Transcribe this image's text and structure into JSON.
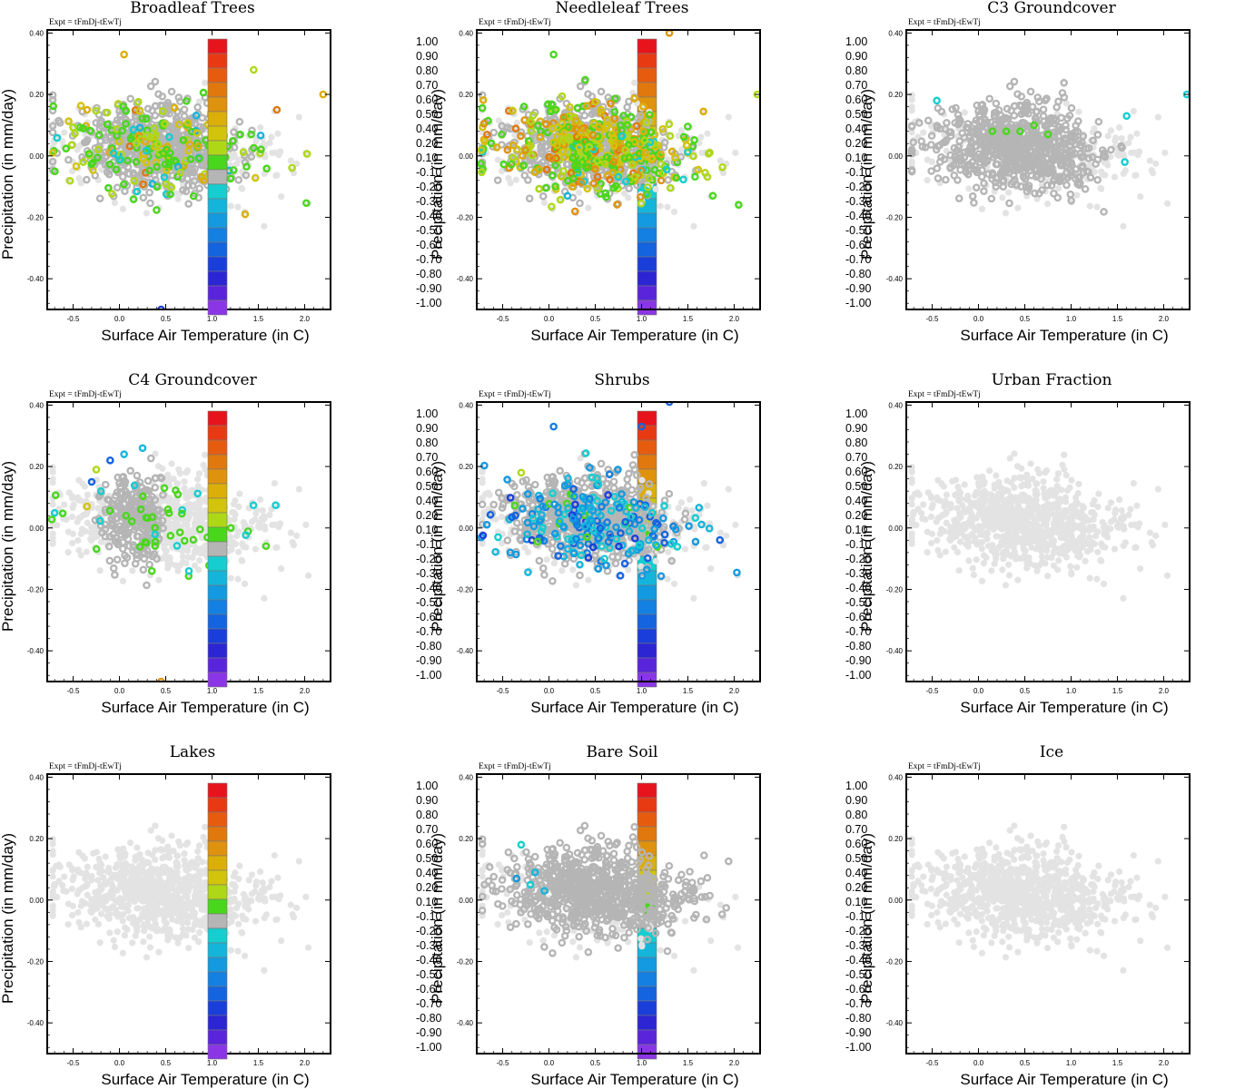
{
  "figure": {
    "colorbar": {
      "labels": [
        "1.00",
        "0.90",
        "0.80",
        "0.70",
        "0.60",
        "0.50",
        "0.40",
        "0.20",
        "0.10",
        "-0.10",
        "-0.20",
        "-0.30",
        "-0.40",
        "-0.50",
        "-0.60",
        "-0.70",
        "-0.80",
        "-0.90",
        "-1.00"
      ],
      "colors": [
        "#e8141c",
        "#e83a12",
        "#e65c0f",
        "#e0780e",
        "#df920d",
        "#dcae08",
        "#d2c40a",
        "#aed817",
        "#49d71c",
        "#b5b5b5",
        "#16cdd0",
        "#15b5db",
        "#139ae0",
        "#1380e2",
        "#1463df",
        "#1a3ed9",
        "#2b25d3",
        "#5a24db",
        "#8b36e6"
      ],
      "neutral_color": "#b5b5b5",
      "background_point_color": "#e3e3e3"
    },
    "x_ticks": [
      "-0.5",
      "0.0",
      "0.5",
      "1.0",
      "1.5",
      "2.0"
    ],
    "y_ticks": [
      "0.40",
      "0.20",
      "0.00",
      "-0.20",
      "-0.40"
    ]
  },
  "chart_data": [
    {
      "type": "scatter",
      "title": "Broadleaf Trees",
      "expt_label": "Expt = tFmDj-tEwTj",
      "xlabel": "Surface Air Temperature (in C)",
      "ylabel": "Precipitation (in mm/day)",
      "xlim": [
        -0.78,
        2.28
      ],
      "ylim": [
        -0.5,
        0.41
      ],
      "highlight": [
        0.35,
        0.6,
        0.2,
        0.08
      ],
      "seed": 11,
      "colored_fraction": 0.22,
      "color_mix": {
        "0.10": 0.45,
        "0.20": 0.2,
        "0.40": 0.12,
        "0.50": 0.08,
        "-0.20": 0.06,
        "-0.30": 0.05,
        "0.70": 0.04
      },
      "points": [
        [
          0.05,
          0.33,
          "0.50"
        ],
        [
          0.45,
          -0.5,
          "-0.70"
        ],
        [
          1.7,
          0.15,
          "0.70"
        ],
        [
          2.2,
          0.2,
          "0.50"
        ],
        [
          1.45,
          0.28,
          "0.20"
        ],
        [
          -0.35,
          0.15,
          "0.50"
        ]
      ]
    },
    {
      "type": "scatter",
      "title": "Needleleaf Trees",
      "expt_label": "Expt = tFmDj-tEwTj",
      "xlabel": "Surface Air Temperature (in C)",
      "ylabel": "Precipitation (in mm/day)",
      "xlim": [
        -0.78,
        2.28
      ],
      "ylim": [
        -0.5,
        0.41
      ],
      "highlight": [
        0.35,
        0.6,
        0.2,
        0.08
      ],
      "seed": 23,
      "colored_fraction": 0.45,
      "color_mix": {
        "0.10": 0.25,
        "0.20": 0.2,
        "0.40": 0.2,
        "0.50": 0.15,
        "0.60": 0.1,
        "-0.20": 0.04,
        "0.70": 0.06
      },
      "points": [
        [
          1.3,
          0.4,
          "0.60"
        ],
        [
          0.05,
          0.33,
          "0.10"
        ],
        [
          2.25,
          0.2,
          "0.20"
        ],
        [
          0.2,
          -0.13,
          "-0.30"
        ]
      ]
    },
    {
      "type": "scatter",
      "title": "C3 Groundcover",
      "expt_label": "Expt = tFmDj-tEwTj",
      "xlabel": "Surface Air Temperature (in C)",
      "ylabel": "Precipitation (in mm/day)",
      "xlim": [
        -0.78,
        2.28
      ],
      "ylim": [
        -0.5,
        0.41
      ],
      "highlight": [
        0.35,
        0.6,
        0.2,
        0.08
      ],
      "seed": 37,
      "colored_fraction": 0.0,
      "color_mix": {},
      "points": [
        [
          -0.45,
          0.18,
          "-0.20"
        ],
        [
          0.15,
          0.08,
          "0.10"
        ],
        [
          0.3,
          0.08,
          "0.10"
        ],
        [
          0.45,
          0.08,
          "0.10"
        ],
        [
          0.6,
          0.1,
          "0.10"
        ],
        [
          0.75,
          0.07,
          "0.10"
        ],
        [
          1.6,
          0.13,
          "-0.20"
        ],
        [
          1.58,
          -0.02,
          "-0.20"
        ],
        [
          2.25,
          0.2,
          "-0.20"
        ]
      ]
    },
    {
      "type": "scatter",
      "title": "C4 Groundcover",
      "expt_label": "Expt = tFmDj-tEwTj",
      "xlabel": "Surface Air Temperature (in C)",
      "ylabel": "Precipitation (in mm/day)",
      "xlim": [
        -0.78,
        2.28
      ],
      "ylim": [
        -0.5,
        0.41
      ],
      "highlight": [
        0.1,
        0.2,
        0.3,
        0.1
      ],
      "seed": 41,
      "colored_fraction": 0.05,
      "color_mix": {
        "0.10": 0.8,
        "-0.20": 0.2
      },
      "points": [
        [
          -0.1,
          0.22,
          "-0.60"
        ],
        [
          0.05,
          0.24,
          "-0.30"
        ],
        [
          0.25,
          0.26,
          "-0.30"
        ],
        [
          -0.3,
          0.15,
          "-0.60"
        ],
        [
          -0.25,
          0.19,
          "0.20"
        ],
        [
          -0.35,
          0.07,
          "0.40"
        ],
        [
          -0.2,
          0.12,
          "-0.20"
        ],
        [
          0.45,
          -0.5,
          "0.60"
        ],
        [
          0.75,
          -0.14,
          "-0.20"
        ],
        [
          0.35,
          -0.14,
          "0.10"
        ]
      ]
    },
    {
      "type": "scatter",
      "title": "Shrubs",
      "expt_label": "Expt = tFmDj-tEwTj",
      "xlabel": "Surface Air Temperature (in C)",
      "ylabel": "Precipitation (in mm/day)",
      "xlim": [
        -0.78,
        2.28
      ],
      "ylim": [
        -0.5,
        0.41
      ],
      "highlight": [
        0.35,
        0.6,
        0.2,
        0.08
      ],
      "seed": 53,
      "colored_fraction": 0.26,
      "color_mix": {
        "-0.20": 0.2,
        "-0.30": 0.2,
        "-0.40": 0.2,
        "-0.50": 0.15,
        "-0.60": 0.12,
        "-0.70": 0.08,
        "0.10": 0.05
      },
      "points": [
        [
          1.3,
          0.41,
          "-0.60"
        ],
        [
          0.05,
          0.33,
          "-0.50"
        ],
        [
          1.0,
          0.33,
          "-0.60"
        ],
        [
          -0.3,
          0.18,
          "0.20"
        ],
        [
          -0.55,
          -0.03,
          "-0.20"
        ],
        [
          0.6,
          -0.1,
          "-0.20"
        ]
      ]
    },
    {
      "type": "scatter",
      "title": "Urban Fraction",
      "expt_label": "Expt = tFmDj-tEwTj",
      "xlabel": "Surface Air Temperature (in C)",
      "ylabel": "Precipitation (in mm/day)",
      "xlim": [
        -0.78,
        2.28
      ],
      "ylim": [
        -0.5,
        0.41
      ],
      "highlight": [
        0,
        0,
        0,
        0
      ],
      "seed": 61,
      "colored_fraction": 0.0,
      "color_mix": {},
      "points": []
    },
    {
      "type": "scatter",
      "title": "Lakes",
      "expt_label": "Expt = tFmDj-tEwTj",
      "xlabel": "Surface Air Temperature (in C)",
      "ylabel": "Precipitation (in mm/day)",
      "xlim": [
        -0.78,
        2.28
      ],
      "ylim": [
        -0.5,
        0.41
      ],
      "highlight": [
        0,
        0,
        0,
        0
      ],
      "seed": 71,
      "colored_fraction": 0.0,
      "color_mix": {},
      "points": []
    },
    {
      "type": "scatter",
      "title": "Bare Soil",
      "expt_label": "Expt = tFmDj-tEwTj",
      "xlabel": "Surface Air Temperature (in C)",
      "ylabel": "Precipitation (in mm/day)",
      "xlim": [
        -0.78,
        2.28
      ],
      "ylim": [
        -0.5,
        0.41
      ],
      "highlight": [
        0.75,
        0.9,
        0.25,
        0.12
      ],
      "seed": 83,
      "colored_fraction": 0.0,
      "color_mix": {},
      "points": [
        [
          -0.3,
          0.18,
          "-0.20"
        ],
        [
          -0.35,
          0.07,
          "-0.40"
        ],
        [
          -0.15,
          0.09,
          "-0.30"
        ],
        [
          -0.05,
          0.03,
          "-0.30"
        ],
        [
          -0.2,
          0.05,
          "-0.20"
        ]
      ]
    },
    {
      "type": "scatter",
      "title": "Ice",
      "expt_label": "Expt = tFmDj-tEwTj",
      "xlabel": "Surface Air Temperature (in C)",
      "ylabel": "Precipitation (in mm/day)",
      "xlim": [
        -0.78,
        2.28
      ],
      "ylim": [
        -0.5,
        0.41
      ],
      "highlight": [
        0,
        0,
        0,
        0
      ],
      "seed": 97,
      "colored_fraction": 0.0,
      "color_mix": {},
      "points": []
    }
  ]
}
